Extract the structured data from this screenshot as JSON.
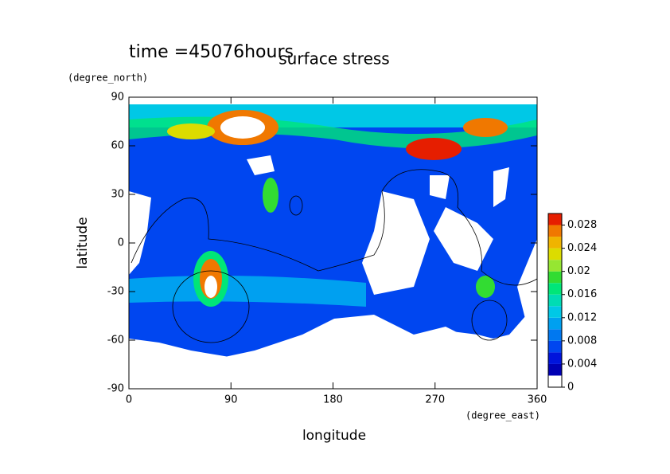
{
  "chart_data": {
    "type": "contour",
    "title": "surface stress",
    "subtitle": "time =45076hours",
    "x_label": "longitude",
    "x_unit": "(degree_east)",
    "y_label": "latitude",
    "y_unit": "(degree_north)",
    "xlim": [
      0,
      360
    ],
    "xticks": [
      0,
      90,
      180,
      270,
      360
    ],
    "ylim": [
      -90,
      90
    ],
    "yticks": [
      90,
      60,
      30,
      0,
      -30,
      -60,
      -90
    ],
    "colorbar": {
      "levels": [
        0,
        0.002,
        0.004,
        0.006,
        0.008,
        0.01,
        0.012,
        0.014,
        0.016,
        0.018,
        0.02,
        0.022,
        0.024,
        0.026,
        0.028,
        0.03
      ],
      "colors": [
        "#ffffff",
        "#0000b4",
        "#0014dc",
        "#0046f0",
        "#0078f0",
        "#00a0f0",
        "#00c8e6",
        "#00dcb4",
        "#00e678",
        "#32dc32",
        "#96e632",
        "#dcdc00",
        "#f0b400",
        "#f07800",
        "#e61e00"
      ],
      "ticks": [
        0,
        0.004,
        0.008,
        0.012,
        0.016,
        0.02,
        0.024,
        0.028
      ]
    }
  }
}
